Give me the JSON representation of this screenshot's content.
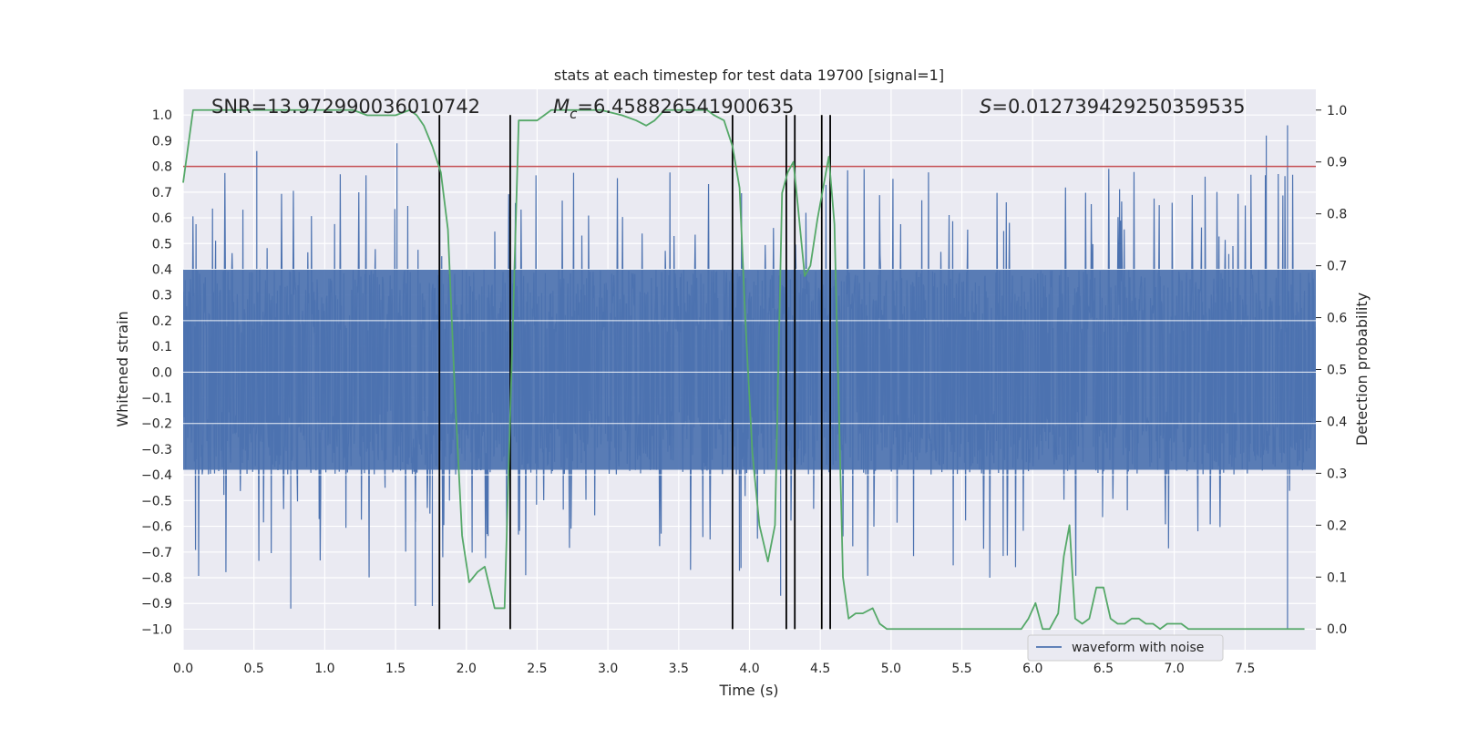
{
  "chart_data": {
    "type": "line",
    "title": "stats at each timestep for test data 19700 [signal=1]",
    "xlabel": "Time (s)",
    "ylabel_left": "Whitened strain",
    "ylabel_right": "Detection probability",
    "xlim": [
      0,
      8
    ],
    "ylim_left": [
      -1.08,
      1.1
    ],
    "ylim_right": [
      -0.04,
      1.04
    ],
    "x_ticks": [
      0.0,
      0.5,
      1.0,
      1.5,
      2.0,
      2.5,
      3.0,
      3.5,
      4.0,
      4.5,
      5.0,
      5.5,
      6.0,
      6.5,
      7.0,
      7.5
    ],
    "x_tick_labels": [
      "0.0",
      "0.5",
      "1.0",
      "1.5",
      "2.0",
      "2.5",
      "3.0",
      "3.5",
      "4.0",
      "4.5",
      "5.0",
      "5.5",
      "6.0",
      "6.5",
      "7.0",
      "7.5"
    ],
    "y_left_ticks": [
      1.0,
      0.9,
      0.8,
      0.7,
      0.6,
      0.5,
      0.4,
      0.3,
      0.2,
      0.1,
      0.0,
      -0.1,
      -0.2,
      -0.3,
      -0.4,
      -0.5,
      -0.6,
      -0.7,
      -0.8,
      -0.9,
      -1.0
    ],
    "y_left_tick_labels": [
      "1.0",
      "0.9",
      "0.8",
      "0.7",
      "0.6",
      "0.5",
      "0.4",
      "0.3",
      "0.2",
      "0.1",
      "0.0",
      "−0.1",
      "−0.2",
      "−0.3",
      "−0.4",
      "−0.5",
      "−0.6",
      "−0.7",
      "−0.8",
      "−0.9",
      "−1.0"
    ],
    "y_right_ticks": [
      1.0,
      0.9,
      0.8,
      0.7,
      0.6,
      0.5,
      0.4,
      0.3,
      0.2,
      0.1,
      0.0
    ],
    "y_right_tick_labels": [
      "1.0",
      "0.9",
      "0.8",
      "0.7",
      "0.6",
      "0.5",
      "0.4",
      "0.3",
      "0.2",
      "0.1",
      "0.0"
    ],
    "annotations": {
      "snr": "SNR=13.972990036010742",
      "mc_symbol": "M",
      "mc_subscript": "c",
      "mc_value": "=6.458826541900635",
      "s_symbol": "S",
      "s_value": "=0.012739429250359535"
    },
    "threshold": {
      "value": 0.8,
      "axis": "left",
      "color": "#c44e52"
    },
    "event_markers_x": [
      1.81,
      2.31,
      3.88,
      4.26,
      4.32,
      4.51,
      4.57
    ],
    "legend": {
      "label": "waveform with noise",
      "location": "lower-center-right"
    },
    "series": [
      {
        "name": "waveform with noise",
        "axis": "left",
        "color": "#4c72b0",
        "description": "dense whitened strain noise trace, band roughly -0.38 to 0.40 with spikes",
        "band_upper": 0.4,
        "band_lower": -0.38,
        "spike_max_x": [
          0.52,
          1.51,
          7.65,
          7.8
        ],
        "spike_max_y": [
          0.86,
          0.89,
          0.92,
          0.96
        ],
        "spike_min_x": [
          0.76,
          1.64,
          1.76,
          4.22,
          7.8
        ],
        "spike_min_y": [
          -0.92,
          -0.91,
          -0.91,
          -0.87,
          -1.0
        ]
      },
      {
        "name": "detection probability",
        "axis": "right",
        "color": "#55a868",
        "x": [
          0.0,
          0.07,
          0.12,
          0.2,
          0.3,
          0.5,
          0.8,
          1.0,
          1.2,
          1.3,
          1.4,
          1.5,
          1.6,
          1.65,
          1.7,
          1.76,
          1.82,
          1.87,
          1.92,
          1.97,
          2.02,
          2.08,
          2.13,
          2.2,
          2.27,
          2.33,
          2.37,
          2.42,
          2.5,
          2.55,
          2.6,
          2.7,
          2.8,
          2.95,
          3.1,
          3.2,
          3.27,
          3.33,
          3.4,
          3.5,
          3.6,
          3.7,
          3.75,
          3.82,
          3.88,
          3.93,
          3.97,
          4.02,
          4.07,
          4.13,
          4.18,
          4.23,
          4.27,
          4.31,
          4.34,
          4.39,
          4.43,
          4.48,
          4.52,
          4.56,
          4.6,
          4.66,
          4.7,
          4.75,
          4.8,
          4.87,
          4.92,
          4.97,
          5.05,
          5.2,
          5.4,
          5.6,
          5.8,
          5.92,
          5.97,
          6.02,
          6.07,
          6.12,
          6.18,
          6.22,
          6.26,
          6.3,
          6.35,
          6.4,
          6.45,
          6.5,
          6.55,
          6.6,
          6.65,
          6.7,
          6.75,
          6.8,
          6.85,
          6.9,
          6.95,
          7.0,
          7.05,
          7.1,
          7.15,
          7.2,
          7.3,
          7.5,
          7.7,
          7.85,
          7.92
        ],
        "y": [
          0.86,
          1.0,
          1.0,
          1.0,
          1.0,
          1.0,
          1.0,
          1.0,
          1.0,
          0.99,
          0.99,
          0.99,
          1.0,
          0.99,
          0.97,
          0.93,
          0.88,
          0.77,
          0.45,
          0.18,
          0.09,
          0.11,
          0.12,
          0.04,
          0.04,
          0.6,
          0.98,
          0.98,
          0.98,
          0.99,
          1.0,
          1.0,
          1.0,
          1.0,
          0.99,
          0.98,
          0.97,
          0.98,
          1.0,
          1.0,
          1.0,
          1.0,
          0.99,
          0.98,
          0.93,
          0.85,
          0.6,
          0.34,
          0.2,
          0.13,
          0.2,
          0.84,
          0.88,
          0.9,
          0.82,
          0.68,
          0.7,
          0.79,
          0.85,
          0.91,
          0.78,
          0.1,
          0.02,
          0.03,
          0.03,
          0.04,
          0.01,
          0.0,
          0.0,
          0.0,
          0.0,
          0.0,
          0.0,
          0.0,
          0.02,
          0.05,
          0.0,
          0.0,
          0.03,
          0.14,
          0.2,
          0.02,
          0.01,
          0.02,
          0.08,
          0.08,
          0.02,
          0.01,
          0.01,
          0.02,
          0.02,
          0.01,
          0.01,
          0.0,
          0.01,
          0.01,
          0.01,
          0.0,
          0.0,
          0.0,
          0.0,
          0.0,
          0.0,
          0.0,
          0.0
        ]
      }
    ]
  }
}
